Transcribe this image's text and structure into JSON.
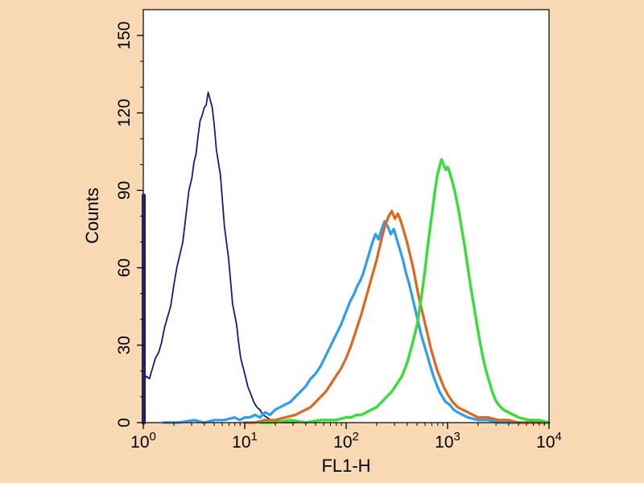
{
  "colors": {
    "background": "#f9d8b4",
    "plot_background": "#ffffff",
    "plot_border": "#303030",
    "axis_text": "#000000"
  },
  "chart_data": {
    "type": "line",
    "subtype": "flow-cytometry-histogram-overlay",
    "title": "",
    "xlabel": "FL1-H",
    "ylabel": "Counts",
    "x_scale": "log10",
    "xlim_log10": [
      0,
      4
    ],
    "ylim": [
      0,
      160
    ],
    "grid": false,
    "legend": "none",
    "y_ticks": [
      0,
      30,
      60,
      90,
      120,
      150
    ],
    "y_minor_step": 10,
    "x_ticks": [
      {
        "log10": 0,
        "base": "10",
        "exponent": "0"
      },
      {
        "log10": 1,
        "base": "10",
        "exponent": "1"
      },
      {
        "log10": 2,
        "base": "10",
        "exponent": "2"
      },
      {
        "log10": 3,
        "base": "10",
        "exponent": "3"
      },
      {
        "log10": 4,
        "base": "10",
        "exponent": "4"
      }
    ],
    "series": [
      {
        "name": "navy-first-bin-spike",
        "color": "#191980",
        "width": 5,
        "points": [
          [
            0.004,
            0
          ],
          [
            0.004,
            88
          ]
        ]
      },
      {
        "name": "navy-control",
        "color": "#191980",
        "width": 1.8,
        "peak": {
          "x_log10": 0.64,
          "count": 128
        },
        "points": [
          [
            0.0,
            16
          ],
          [
            0.03,
            18
          ],
          [
            0.06,
            17
          ],
          [
            0.09,
            21
          ],
          [
            0.12,
            25
          ],
          [
            0.15,
            27
          ],
          [
            0.18,
            31
          ],
          [
            0.21,
            37
          ],
          [
            0.24,
            41
          ],
          [
            0.27,
            45
          ],
          [
            0.3,
            53
          ],
          [
            0.33,
            60
          ],
          [
            0.36,
            65
          ],
          [
            0.39,
            70
          ],
          [
            0.42,
            80
          ],
          [
            0.45,
            90
          ],
          [
            0.48,
            95
          ],
          [
            0.5,
            101
          ],
          [
            0.52,
            104
          ],
          [
            0.54,
            111
          ],
          [
            0.56,
            117
          ],
          [
            0.58,
            119
          ],
          [
            0.6,
            122
          ],
          [
            0.62,
            123
          ],
          [
            0.64,
            128
          ],
          [
            0.66,
            125
          ],
          [
            0.68,
            122
          ],
          [
            0.7,
            115
          ],
          [
            0.72,
            106
          ],
          [
            0.74,
            101
          ],
          [
            0.76,
            96
          ],
          [
            0.78,
            86
          ],
          [
            0.8,
            76
          ],
          [
            0.82,
            70
          ],
          [
            0.84,
            64
          ],
          [
            0.86,
            55
          ],
          [
            0.88,
            46
          ],
          [
            0.9,
            42
          ],
          [
            0.92,
            38
          ],
          [
            0.94,
            31
          ],
          [
            0.96,
            25
          ],
          [
            0.98,
            22
          ],
          [
            1.0,
            19
          ],
          [
            1.03,
            14
          ],
          [
            1.06,
            11
          ],
          [
            1.09,
            8
          ],
          [
            1.12,
            6
          ],
          [
            1.15,
            5
          ],
          [
            1.18,
            3
          ],
          [
            1.22,
            2
          ],
          [
            1.26,
            1
          ],
          [
            1.31,
            1
          ],
          [
            1.36,
            0
          ],
          [
            1.5,
            0
          ]
        ]
      },
      {
        "name": "blue-sample",
        "color": "#2e9df0",
        "width": 3.2,
        "peak": {
          "x_log10": 2.38,
          "count": 78
        },
        "points": [
          [
            0.2,
            0
          ],
          [
            0.35,
            0
          ],
          [
            0.5,
            1
          ],
          [
            0.6,
            0
          ],
          [
            0.7,
            1
          ],
          [
            0.8,
            1
          ],
          [
            0.9,
            2
          ],
          [
            0.95,
            1
          ],
          [
            1.0,
            2
          ],
          [
            1.05,
            2
          ],
          [
            1.1,
            3
          ],
          [
            1.15,
            2
          ],
          [
            1.2,
            4
          ],
          [
            1.25,
            3
          ],
          [
            1.3,
            5
          ],
          [
            1.35,
            6
          ],
          [
            1.4,
            7
          ],
          [
            1.45,
            8
          ],
          [
            1.5,
            10
          ],
          [
            1.55,
            12
          ],
          [
            1.6,
            14
          ],
          [
            1.65,
            17
          ],
          [
            1.7,
            19
          ],
          [
            1.75,
            22
          ],
          [
            1.8,
            26
          ],
          [
            1.85,
            30
          ],
          [
            1.9,
            34
          ],
          [
            1.95,
            38
          ],
          [
            2.0,
            43
          ],
          [
            2.04,
            47
          ],
          [
            2.08,
            50
          ],
          [
            2.11,
            53
          ],
          [
            2.14,
            55
          ],
          [
            2.17,
            58
          ],
          [
            2.2,
            62
          ],
          [
            2.23,
            66
          ],
          [
            2.26,
            70
          ],
          [
            2.29,
            73
          ],
          [
            2.32,
            71
          ],
          [
            2.35,
            75
          ],
          [
            2.38,
            78
          ],
          [
            2.41,
            76
          ],
          [
            2.44,
            73
          ],
          [
            2.47,
            75
          ],
          [
            2.5,
            71
          ],
          [
            2.53,
            67
          ],
          [
            2.56,
            63
          ],
          [
            2.59,
            58
          ],
          [
            2.62,
            54
          ],
          [
            2.65,
            49
          ],
          [
            2.68,
            44
          ],
          [
            2.71,
            39
          ],
          [
            2.74,
            34
          ],
          [
            2.77,
            30
          ],
          [
            2.8,
            26
          ],
          [
            2.83,
            22
          ],
          [
            2.86,
            18
          ],
          [
            2.89,
            15
          ],
          [
            2.92,
            12
          ],
          [
            2.95,
            10
          ],
          [
            2.98,
            8
          ],
          [
            3.02,
            7
          ],
          [
            3.06,
            5
          ],
          [
            3.1,
            4
          ],
          [
            3.15,
            3
          ],
          [
            3.2,
            2
          ],
          [
            3.3,
            1
          ],
          [
            3.4,
            1
          ],
          [
            3.5,
            0
          ],
          [
            3.7,
            0
          ],
          [
            3.9,
            0
          ]
        ]
      },
      {
        "name": "orange-sample",
        "color": "#df661f",
        "width": 3.2,
        "peak": {
          "x_log10": 2.45,
          "count": 82
        },
        "points": [
          [
            1.0,
            0
          ],
          [
            1.1,
            0
          ],
          [
            1.2,
            1
          ],
          [
            1.3,
            1
          ],
          [
            1.4,
            2
          ],
          [
            1.5,
            3
          ],
          [
            1.55,
            4
          ],
          [
            1.6,
            5
          ],
          [
            1.65,
            6
          ],
          [
            1.7,
            8
          ],
          [
            1.75,
            10
          ],
          [
            1.8,
            12
          ],
          [
            1.85,
            15
          ],
          [
            1.9,
            18
          ],
          [
            1.95,
            21
          ],
          [
            2.0,
            25
          ],
          [
            2.05,
            30
          ],
          [
            2.1,
            36
          ],
          [
            2.15,
            42
          ],
          [
            2.2,
            49
          ],
          [
            2.25,
            56
          ],
          [
            2.3,
            63
          ],
          [
            2.33,
            68
          ],
          [
            2.36,
            73
          ],
          [
            2.39,
            77
          ],
          [
            2.42,
            80
          ],
          [
            2.45,
            82
          ],
          [
            2.48,
            79
          ],
          [
            2.51,
            81
          ],
          [
            2.54,
            78
          ],
          [
            2.57,
            74
          ],
          [
            2.6,
            70
          ],
          [
            2.63,
            65
          ],
          [
            2.66,
            60
          ],
          [
            2.69,
            54
          ],
          [
            2.72,
            48
          ],
          [
            2.75,
            43
          ],
          [
            2.78,
            38
          ],
          [
            2.81,
            33
          ],
          [
            2.84,
            28
          ],
          [
            2.87,
            24
          ],
          [
            2.9,
            20
          ],
          [
            2.93,
            17
          ],
          [
            2.96,
            14
          ],
          [
            3.0,
            11
          ],
          [
            3.05,
            8
          ],
          [
            3.1,
            6
          ],
          [
            3.15,
            5
          ],
          [
            3.2,
            4
          ],
          [
            3.3,
            2
          ],
          [
            3.4,
            2
          ],
          [
            3.5,
            1
          ],
          [
            3.6,
            1
          ],
          [
            3.7,
            0
          ],
          [
            4.0,
            0
          ]
        ]
      },
      {
        "name": "green-sample",
        "color": "#38dd38",
        "width": 3.4,
        "peak": {
          "x_log10": 2.94,
          "count": 102
        },
        "points": [
          [
            1.15,
            0
          ],
          [
            1.3,
            0
          ],
          [
            1.45,
            1
          ],
          [
            1.6,
            0
          ],
          [
            1.75,
            1
          ],
          [
            1.9,
            1
          ],
          [
            2.0,
            2
          ],
          [
            2.05,
            2
          ],
          [
            2.1,
            3
          ],
          [
            2.15,
            3
          ],
          [
            2.2,
            4
          ],
          [
            2.25,
            5
          ],
          [
            2.3,
            6
          ],
          [
            2.35,
            8
          ],
          [
            2.4,
            10
          ],
          [
            2.45,
            12
          ],
          [
            2.5,
            15
          ],
          [
            2.55,
            18
          ],
          [
            2.6,
            23
          ],
          [
            2.65,
            30
          ],
          [
            2.7,
            38
          ],
          [
            2.72,
            43
          ],
          [
            2.74,
            48
          ],
          [
            2.76,
            54
          ],
          [
            2.78,
            60
          ],
          [
            2.8,
            67
          ],
          [
            2.82,
            73
          ],
          [
            2.84,
            79
          ],
          [
            2.86,
            85
          ],
          [
            2.88,
            91
          ],
          [
            2.9,
            96
          ],
          [
            2.92,
            99
          ],
          [
            2.94,
            102
          ],
          [
            2.96,
            100
          ],
          [
            2.98,
            98
          ],
          [
            3.0,
            99
          ],
          [
            3.02,
            97
          ],
          [
            3.05,
            93
          ],
          [
            3.08,
            88
          ],
          [
            3.11,
            82
          ],
          [
            3.14,
            75
          ],
          [
            3.17,
            68
          ],
          [
            3.2,
            60
          ],
          [
            3.23,
            52
          ],
          [
            3.26,
            45
          ],
          [
            3.29,
            38
          ],
          [
            3.32,
            31
          ],
          [
            3.35,
            25
          ],
          [
            3.38,
            20
          ],
          [
            3.41,
            16
          ],
          [
            3.44,
            12
          ],
          [
            3.47,
            9
          ],
          [
            3.5,
            7
          ],
          [
            3.55,
            5
          ],
          [
            3.6,
            4
          ],
          [
            3.65,
            3
          ],
          [
            3.7,
            2
          ],
          [
            3.8,
            1
          ],
          [
            3.9,
            1
          ],
          [
            4.0,
            0
          ]
        ]
      }
    ]
  }
}
